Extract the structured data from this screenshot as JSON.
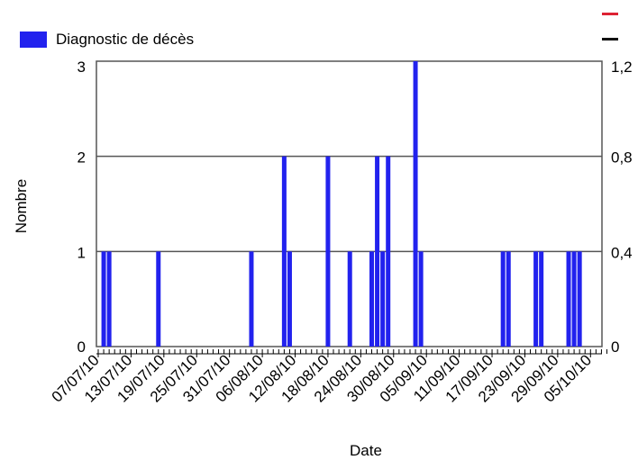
{
  "colors": {
    "bar": "#2222EE",
    "grid": "#555555",
    "legend_line_red": "#DD2233",
    "legend_line_black": "#111111"
  },
  "chart_data": {
    "type": "bar",
    "title": "",
    "xlabel": "Date",
    "ylabel": "Nombre",
    "ylim": [
      0,
      3
    ],
    "y_ticks": [
      "0",
      "1",
      "2",
      "3"
    ],
    "y2lim": [
      0,
      1.2
    ],
    "y2_ticks": [
      "0",
      "0,4",
      "0,8",
      "1,2"
    ],
    "grid": true,
    "legend_position": "top-left",
    "x_tick_labels": [
      "07/07/10",
      "13/07/10",
      "19/07/10",
      "25/07/10",
      "31/07/10",
      "06/08/10",
      "12/08/10",
      "18/08/10",
      "24/08/10",
      "30/08/10",
      "05/09/10",
      "11/09/10",
      "17/09/10",
      "23/09/10",
      "29/09/10",
      "05/10/10"
    ],
    "series": [
      {
        "name": "Diagnostic de décès",
        "points": [
          {
            "date": "08/07/10",
            "value": 1
          },
          {
            "date": "09/07/10",
            "value": 1
          },
          {
            "date": "18/07/10",
            "value": 1
          },
          {
            "date": "04/08/10",
            "value": 1
          },
          {
            "date": "10/08/10",
            "value": 2
          },
          {
            "date": "11/08/10",
            "value": 1
          },
          {
            "date": "18/08/10",
            "value": 2
          },
          {
            "date": "22/08/10",
            "value": 1
          },
          {
            "date": "26/08/10",
            "value": 1
          },
          {
            "date": "27/08/10",
            "value": 2
          },
          {
            "date": "28/08/10",
            "value": 1
          },
          {
            "date": "29/08/10",
            "value": 2
          },
          {
            "date": "03/09/10",
            "value": 3
          },
          {
            "date": "04/09/10",
            "value": 1
          },
          {
            "date": "19/09/10",
            "value": 1
          },
          {
            "date": "20/09/10",
            "value": 1
          },
          {
            "date": "25/09/10",
            "value": 1
          },
          {
            "date": "26/09/10",
            "value": 1
          },
          {
            "date": "01/10/10",
            "value": 1
          },
          {
            "date": "02/10/10",
            "value": 1
          },
          {
            "date": "03/10/10",
            "value": 1
          }
        ]
      }
    ]
  }
}
